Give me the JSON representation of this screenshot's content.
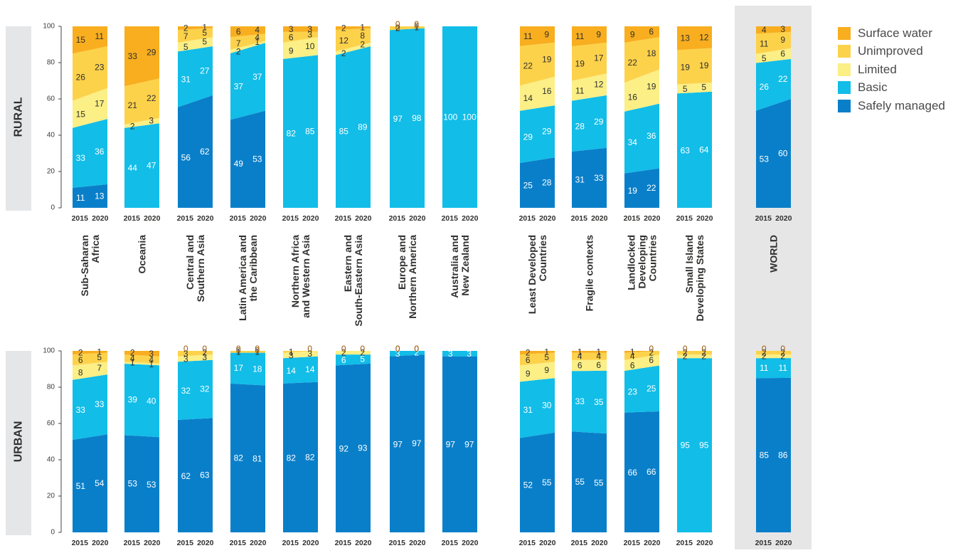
{
  "colors": {
    "safely_managed": "#0a7fc9",
    "basic": "#12bde8",
    "limited": "#fbef86",
    "unimproved": "#fdd24b",
    "surface_water": "#f8ae1f",
    "panel": "#e6e6e6",
    "axis_text": "#3a3a3a",
    "text_dark": "#30302f",
    "zero_label": "#9b5a11",
    "row_label_bg": "#e4e6e8"
  },
  "legend": {
    "items": [
      {
        "label": "Surface water",
        "color": "#f8ae1f"
      },
      {
        "label": "Unimproved",
        "color": "#fdd24b"
      },
      {
        "label": "Limited",
        "color": "#fbef86"
      },
      {
        "label": "Basic",
        "color": "#12bde8"
      },
      {
        "label": "Safely managed",
        "color": "#0a7fc9"
      }
    ]
  },
  "chart_data": {
    "type": "bar",
    "stacked": true,
    "ylim": [
      0,
      100
    ],
    "yticks": [
      0,
      20,
      40,
      60,
      80,
      100
    ],
    "x": [
      "2015",
      "2020"
    ],
    "series_order": [
      "Safely managed",
      "Basic",
      "Limited",
      "Unimproved",
      "Surface water"
    ],
    "regions": [
      "Sub-Saharan Africa",
      "Oceania",
      "Central and Southern Asia",
      "Latin America and the Caribbean",
      "Northern Africa and Western Asia",
      "Eastern and South-Eastern Asia",
      "Europe and Northern America",
      "Australia and New Zealand",
      "Least Developed Countries",
      "Fragile contexts",
      "Landlocked Developing Countries",
      "Small Island Developing States",
      "WORLD"
    ],
    "panels": [
      {
        "label": "RURAL",
        "values": [
          [
            [
              11,
              33,
              15,
              26,
              15
            ],
            [
              13,
              36,
              17,
              23,
              11
            ]
          ],
          [
            [
              null,
              44,
              2,
              21,
              33
            ],
            [
              null,
              47,
              3,
              22,
              29
            ]
          ],
          [
            [
              56,
              31,
              5,
              7,
              2
            ],
            [
              62,
              27,
              5,
              5,
              1
            ]
          ],
          [
            [
              49,
              37,
              2,
              7,
              6
            ],
            [
              53,
              37,
              1,
              4,
              4
            ]
          ],
          [
            [
              null,
              82,
              9,
              6,
              3
            ],
            [
              null,
              85,
              10,
              3,
              3
            ]
          ],
          [
            [
              null,
              85,
              2,
              12,
              2
            ],
            [
              null,
              89,
              2,
              8,
              1
            ]
          ],
          [
            [
              null,
              97,
              0,
              2,
              0
            ],
            [
              null,
              98,
              0,
              1,
              0
            ]
          ],
          [
            [
              null,
              100,
              null,
              null,
              null
            ],
            [
              null,
              100,
              null,
              null,
              null
            ]
          ],
          [
            [
              25,
              29,
              14,
              22,
              11
            ],
            [
              28,
              29,
              16,
              19,
              9
            ]
          ],
          [
            [
              31,
              28,
              11,
              19,
              11
            ],
            [
              33,
              29,
              12,
              17,
              9
            ]
          ],
          [
            [
              19,
              34,
              16,
              22,
              9
            ],
            [
              22,
              36,
              19,
              18,
              6
            ]
          ],
          [
            [
              null,
              63,
              5,
              19,
              13
            ],
            [
              null,
              64,
              5,
              19,
              12
            ]
          ],
          [
            [
              53,
              26,
              5,
              11,
              4
            ],
            [
              60,
              22,
              6,
              9,
              3
            ]
          ]
        ]
      },
      {
        "label": "URBAN",
        "values": [
          [
            [
              51,
              33,
              8,
              6,
              2
            ],
            [
              54,
              33,
              7,
              5,
              1
            ]
          ],
          [
            [
              53,
              39,
              1,
              4,
              2
            ],
            [
              53,
              40,
              1,
              4,
              3
            ]
          ],
          [
            [
              62,
              32,
              3,
              3,
              0
            ],
            [
              63,
              32,
              3,
              2,
              0
            ]
          ],
          [
            [
              82,
              17,
              0,
              1,
              0
            ],
            [
              81,
              18,
              0,
              1,
              0
            ]
          ],
          [
            [
              82,
              14,
              3,
              1,
              null
            ],
            [
              82,
              14,
              3,
              0,
              null
            ]
          ],
          [
            [
              92,
              6,
              2,
              0,
              null
            ],
            [
              93,
              5,
              2,
              0,
              null
            ]
          ],
          [
            [
              97,
              3,
              0,
              0,
              null
            ],
            [
              97,
              2,
              0,
              0,
              null
            ]
          ],
          [
            [
              97,
              3,
              null,
              null,
              null
            ],
            [
              97,
              3,
              null,
              null,
              null
            ]
          ],
          [
            [
              52,
              31,
              9,
              6,
              2
            ],
            [
              55,
              30,
              9,
              5,
              1
            ]
          ],
          [
            [
              55,
              33,
              6,
              4,
              1
            ],
            [
              55,
              35,
              6,
              4,
              1
            ]
          ],
          [
            [
              66,
              23,
              6,
              4,
              1
            ],
            [
              66,
              25,
              6,
              2,
              0
            ]
          ],
          [
            [
              null,
              95,
              2,
              2,
              0
            ],
            [
              null,
              95,
              2,
              2,
              0
            ]
          ],
          [
            [
              85,
              11,
              2,
              2,
              0
            ],
            [
              86,
              11,
              2,
              2,
              0
            ]
          ]
        ]
      }
    ]
  }
}
